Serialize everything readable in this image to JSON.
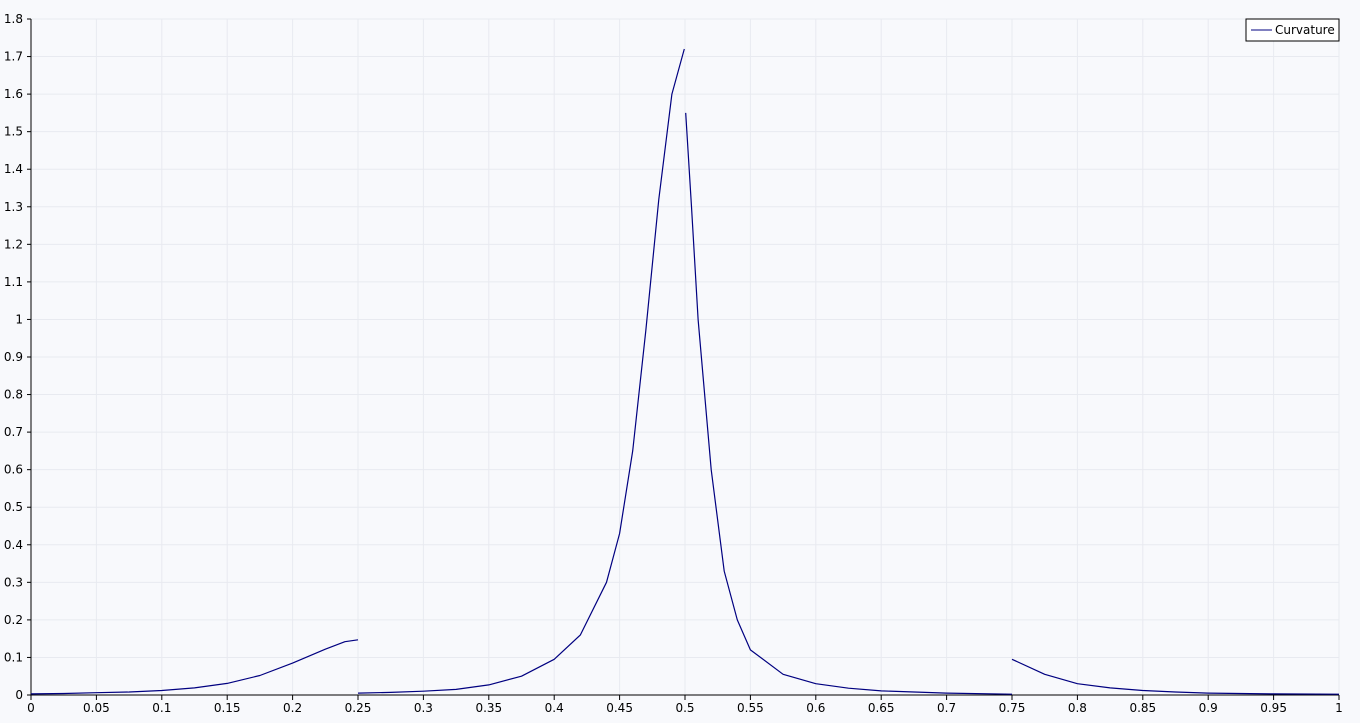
{
  "chart_data": {
    "type": "line",
    "title": "",
    "xlabel": "",
    "ylabel": "",
    "xlim": [
      0,
      1
    ],
    "ylim": [
      0,
      1.8
    ],
    "grid": true,
    "legend_position": "top-right",
    "x_ticks": [
      "0",
      "0.05",
      "0.1",
      "0.15",
      "0.2",
      "0.25",
      "0.3",
      "0.35",
      "0.4",
      "0.45",
      "0.5",
      "0.55",
      "0.6",
      "0.65",
      "0.7",
      "0.75",
      "0.8",
      "0.85",
      "0.9",
      "0.95",
      "1"
    ],
    "y_ticks": [
      "0",
      "0.1",
      "0.2",
      "0.3",
      "0.4",
      "0.5",
      "0.6",
      "0.7",
      "0.8",
      "0.9",
      "1",
      "1.1",
      "1.2",
      "1.3",
      "1.4",
      "1.5",
      "1.6",
      "1.7",
      "1.8"
    ],
    "colors": {
      "series": "#000080",
      "grid": "#e8eaf0",
      "axis": "#000000",
      "background": "#f8f9fc"
    },
    "series": [
      {
        "name": "Curvature",
        "segments": [
          [
            [
              0.0,
              0.003
            ],
            [
              0.025,
              0.004
            ],
            [
              0.05,
              0.006
            ],
            [
              0.075,
              0.008
            ],
            [
              0.1,
              0.012
            ],
            [
              0.125,
              0.019
            ],
            [
              0.15,
              0.031
            ],
            [
              0.175,
              0.052
            ],
            [
              0.2,
              0.085
            ],
            [
              0.225,
              0.122
            ],
            [
              0.24,
              0.142
            ],
            [
              0.25,
              0.147
            ]
          ],
          [
            [
              0.25,
              0.005
            ],
            [
              0.275,
              0.007
            ],
            [
              0.3,
              0.01
            ],
            [
              0.325,
              0.015
            ],
            [
              0.35,
              0.027
            ],
            [
              0.375,
              0.05
            ],
            [
              0.4,
              0.095
            ],
            [
              0.42,
              0.16
            ],
            [
              0.44,
              0.3
            ],
            [
              0.45,
              0.43
            ],
            [
              0.46,
              0.65
            ],
            [
              0.47,
              0.97
            ],
            [
              0.48,
              1.32
            ],
            [
              0.49,
              1.6
            ],
            [
              0.4995,
              1.72
            ]
          ],
          [
            [
              0.5005,
              1.55
            ],
            [
              0.505,
              1.3
            ],
            [
              0.51,
              1.0
            ],
            [
              0.52,
              0.6
            ],
            [
              0.53,
              0.33
            ],
            [
              0.54,
              0.2
            ],
            [
              0.55,
              0.12
            ],
            [
              0.575,
              0.055
            ],
            [
              0.6,
              0.03
            ],
            [
              0.625,
              0.018
            ],
            [
              0.65,
              0.011
            ],
            [
              0.7,
              0.005
            ],
            [
              0.75,
              0.002
            ]
          ],
          [
            [
              0.75,
              0.095
            ],
            [
              0.775,
              0.055
            ],
            [
              0.8,
              0.03
            ],
            [
              0.825,
              0.019
            ],
            [
              0.85,
              0.012
            ],
            [
              0.875,
              0.008
            ],
            [
              0.9,
              0.005
            ],
            [
              0.95,
              0.003
            ],
            [
              1.0,
              0.002
            ]
          ]
        ]
      }
    ]
  }
}
